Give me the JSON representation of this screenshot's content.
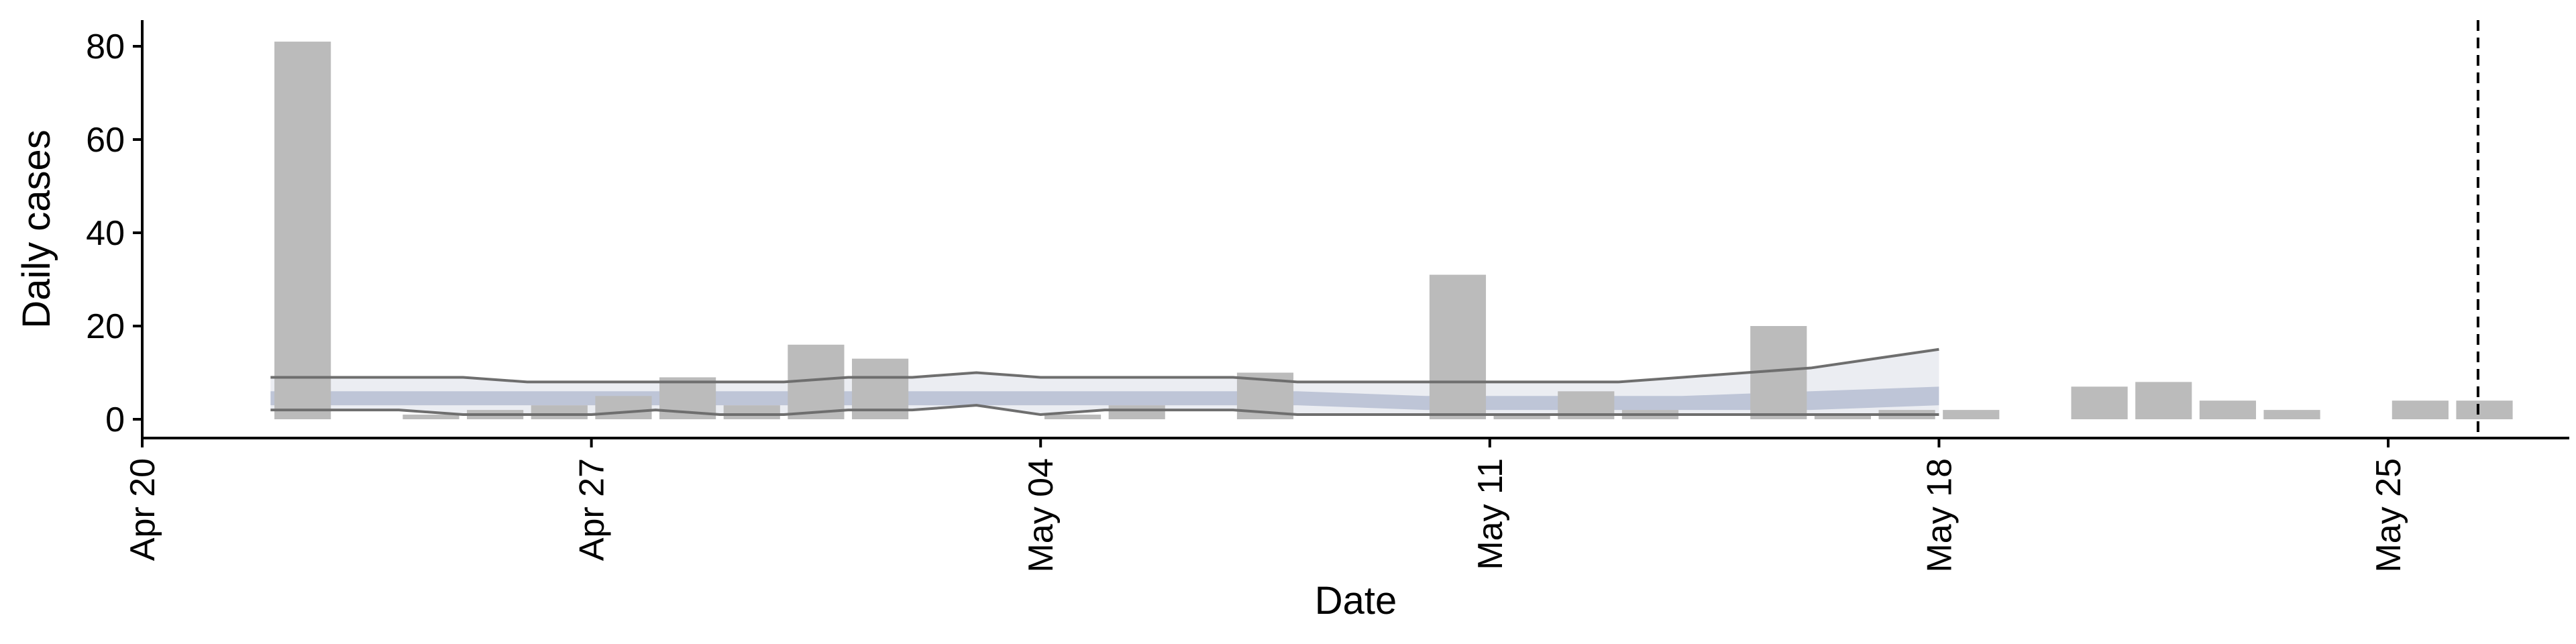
{
  "chart_data": {
    "type": "bar",
    "xlabel": "Date",
    "ylabel": "Daily cases",
    "ylim": [
      0,
      85
    ],
    "xlim": [
      "2020-04-20",
      "2020-05-28"
    ],
    "y_ticks": [
      0,
      20,
      40,
      60,
      80
    ],
    "x_ticks": [
      {
        "date": "2020-04-20",
        "label": "Apr 20"
      },
      {
        "date": "2020-04-27",
        "label": "Apr 27"
      },
      {
        "date": "2020-05-04",
        "label": "May 04"
      },
      {
        "date": "2020-05-11",
        "label": "May 11"
      },
      {
        "date": "2020-05-18",
        "label": "May 18"
      },
      {
        "date": "2020-05-25",
        "label": "May 25"
      }
    ],
    "grid": false,
    "legend": "none",
    "bars": {
      "color": "#bbbbbb",
      "dates": [
        "2020-04-22",
        "2020-04-24",
        "2020-04-25",
        "2020-04-26",
        "2020-04-27",
        "2020-04-28",
        "2020-04-29",
        "2020-04-30",
        "2020-05-01",
        "2020-05-04",
        "2020-05-05",
        "2020-05-07",
        "2020-05-10",
        "2020-05-11",
        "2020-05-12",
        "2020-05-13",
        "2020-05-15",
        "2020-05-16",
        "2020-05-17",
        "2020-05-18",
        "2020-05-20",
        "2020-05-21",
        "2020-05-22",
        "2020-05-23",
        "2020-05-25",
        "2020-05-26"
      ],
      "values": [
        81,
        1,
        2,
        3,
        5,
        9,
        3,
        16,
        13,
        1,
        3,
        10,
        31,
        1,
        6,
        2,
        20,
        1,
        2,
        2,
        7,
        8,
        4,
        2,
        4,
        4
      ]
    },
    "estimate_band": {
      "color": "#6b7aa6",
      "dates": [
        "2020-04-22",
        "2020-04-24",
        "2020-04-26",
        "2020-04-28",
        "2020-04-30",
        "2020-05-02",
        "2020-05-04",
        "2020-05-06",
        "2020-05-08",
        "2020-05-10",
        "2020-05-12",
        "2020-05-14",
        "2020-05-16",
        "2020-05-18"
      ],
      "lower": [
        3,
        3,
        3,
        3,
        3,
        3,
        3,
        3,
        3,
        2,
        2,
        2,
        2,
        3
      ],
      "upper": [
        6,
        6,
        6,
        6,
        6,
        6,
        6,
        6,
        6,
        5,
        5,
        5,
        6,
        7
      ]
    },
    "interval_band": {
      "color": "#c5cadb",
      "dates": [
        "2020-04-22",
        "2020-04-24",
        "2020-04-25",
        "2020-04-26",
        "2020-04-27",
        "2020-04-28",
        "2020-04-29",
        "2020-04-30",
        "2020-05-01",
        "2020-05-02",
        "2020-05-03",
        "2020-05-04",
        "2020-05-05",
        "2020-05-06",
        "2020-05-07",
        "2020-05-08",
        "2020-05-09",
        "2020-05-10",
        "2020-05-11",
        "2020-05-12",
        "2020-05-13",
        "2020-05-14",
        "2020-05-15",
        "2020-05-16",
        "2020-05-17",
        "2020-05-18"
      ],
      "lower": [
        2,
        2,
        1,
        1,
        1,
        2,
        1,
        1,
        2,
        2,
        3,
        1,
        2,
        2,
        2,
        1,
        1,
        1,
        1,
        1,
        1,
        1,
        1,
        1,
        1,
        1
      ],
      "upper": [
        9,
        9,
        9,
        8,
        8,
        8,
        8,
        8,
        9,
        9,
        10,
        9,
        9,
        9,
        9,
        8,
        8,
        8,
        8,
        8,
        8,
        9,
        10,
        11,
        13,
        15
      ]
    },
    "vertical_line": {
      "date": "2020-05-26.4",
      "style": "dashed"
    }
  }
}
